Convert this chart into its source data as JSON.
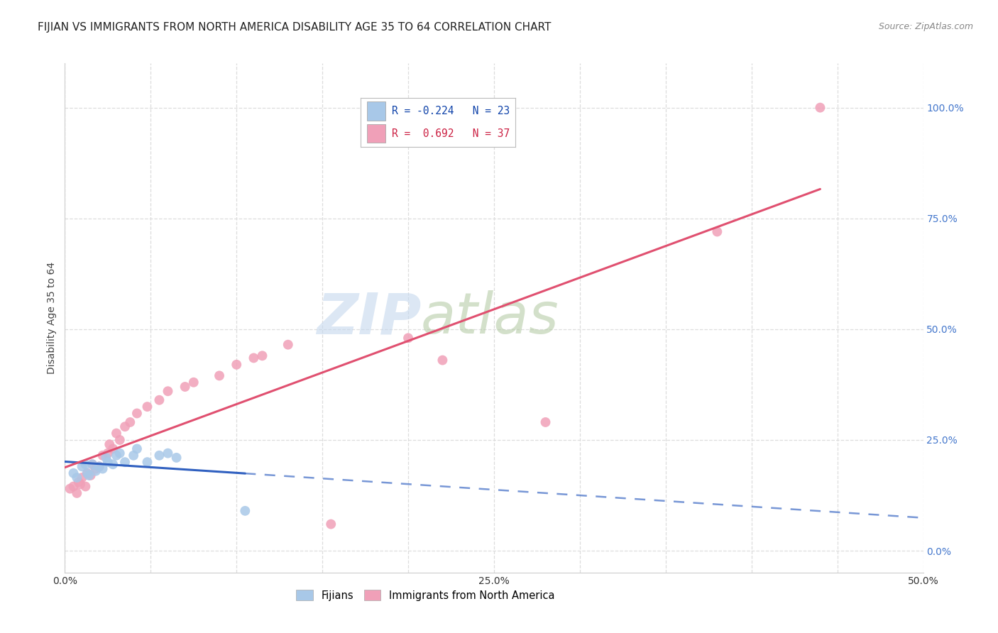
{
  "title": "FIJIAN VS IMMIGRANTS FROM NORTH AMERICA DISABILITY AGE 35 TO 64 CORRELATION CHART",
  "source": "Source: ZipAtlas.com",
  "ylabel": "Disability Age 35 to 64",
  "xlim": [
    0.0,
    0.5
  ],
  "ylim": [
    -0.05,
    1.1
  ],
  "ytick_values": [
    0.0,
    0.25,
    0.5,
    0.75,
    1.0
  ],
  "xtick_values": [
    0.0,
    0.05,
    0.1,
    0.15,
    0.2,
    0.25,
    0.3,
    0.35,
    0.4,
    0.45,
    0.5
  ],
  "xtick_major": [
    0.0,
    0.25,
    0.5
  ],
  "grid_color": "#dddddd",
  "background_color": "#ffffff",
  "fijian_color": "#a8c8e8",
  "immigrant_color": "#f0a0b8",
  "fijian_line_color": "#3060c0",
  "immigrant_line_color": "#e05070",
  "R_fijian": -0.224,
  "N_fijian": 23,
  "R_immigrant": 0.692,
  "N_immigrant": 37,
  "legend_label_fijian": "Fijians",
  "legend_label_immigrant": "Immigrants from North America",
  "fijian_x": [
    0.005,
    0.007,
    0.01,
    0.012,
    0.013,
    0.014,
    0.016,
    0.018,
    0.02,
    0.022,
    0.024,
    0.025,
    0.028,
    0.03,
    0.032,
    0.035,
    0.04,
    0.042,
    0.048,
    0.055,
    0.06,
    0.065,
    0.105
  ],
  "fijian_y": [
    0.175,
    0.165,
    0.19,
    0.195,
    0.175,
    0.17,
    0.195,
    0.18,
    0.19,
    0.185,
    0.21,
    0.2,
    0.195,
    0.215,
    0.22,
    0.2,
    0.215,
    0.23,
    0.2,
    0.215,
    0.22,
    0.21,
    0.09
  ],
  "immigrant_x": [
    0.003,
    0.005,
    0.007,
    0.008,
    0.009,
    0.01,
    0.012,
    0.013,
    0.015,
    0.016,
    0.018,
    0.02,
    0.022,
    0.025,
    0.026,
    0.028,
    0.03,
    0.032,
    0.035,
    0.038,
    0.042,
    0.048,
    0.055,
    0.06,
    0.07,
    0.075,
    0.09,
    0.1,
    0.11,
    0.115,
    0.13,
    0.155,
    0.2,
    0.22,
    0.28,
    0.38,
    0.44
  ],
  "immigrant_y": [
    0.14,
    0.145,
    0.13,
    0.155,
    0.15,
    0.165,
    0.145,
    0.175,
    0.17,
    0.195,
    0.185,
    0.19,
    0.215,
    0.22,
    0.24,
    0.23,
    0.265,
    0.25,
    0.28,
    0.29,
    0.31,
    0.325,
    0.34,
    0.36,
    0.37,
    0.38,
    0.395,
    0.42,
    0.435,
    0.44,
    0.465,
    0.06,
    0.48,
    0.43,
    0.29,
    0.72,
    1.0
  ],
  "watermark_zip": "ZIP",
  "watermark_atlas": "atlas",
  "title_fontsize": 11,
  "axis_label_fontsize": 10,
  "tick_fontsize": 10,
  "legend_fontsize": 10.5,
  "source_fontsize": 9,
  "scatter_size": 100
}
